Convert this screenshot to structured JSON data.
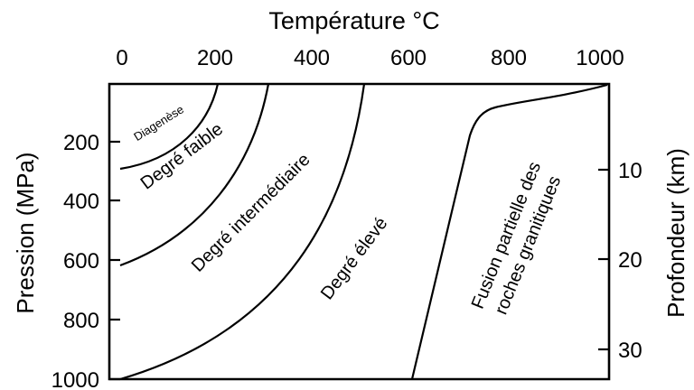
{
  "chart_data": {
    "type": "diagram",
    "title": "Température °C",
    "top_axis": {
      "label": "Température °C",
      "ticks": [
        "0",
        "200",
        "400",
        "600",
        "800",
        "1000"
      ]
    },
    "left_axis": {
      "label": "Pression (MPa)",
      "ticks": [
        "200",
        "400",
        "600",
        "800",
        "1000"
      ]
    },
    "right_axis": {
      "label": "Profondeur (km)",
      "ticks": [
        "10",
        "20",
        "30"
      ]
    },
    "regions": [
      {
        "name": "Diagenèse"
      },
      {
        "name": "Degré faible"
      },
      {
        "name": "Degré intermédiaire"
      },
      {
        "name": "Degré élevé"
      },
      {
        "name": "Fusion partielle des",
        "line2": "roches granitiques"
      }
    ]
  }
}
